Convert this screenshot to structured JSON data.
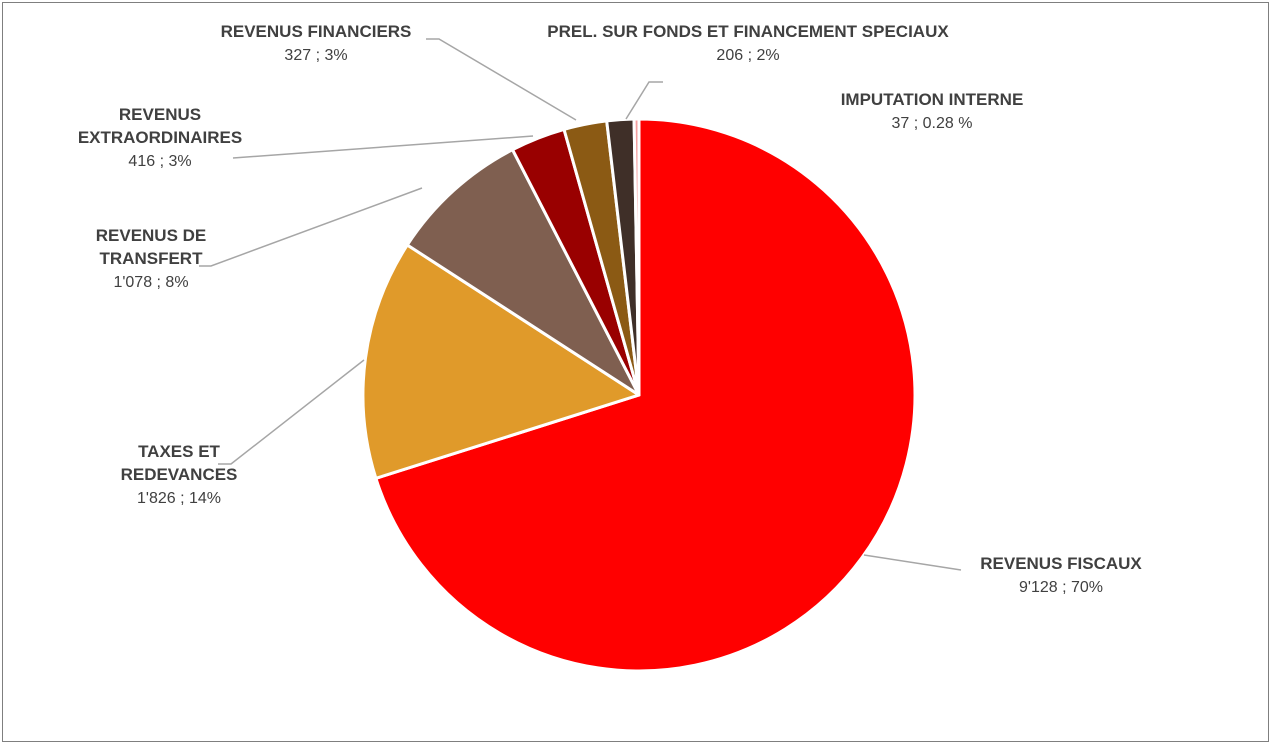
{
  "chart_data": {
    "type": "pie",
    "title": "",
    "start_angle_deg": 0,
    "direction": "clockwise",
    "legend": "none",
    "slices": [
      {
        "name_lines": [
          "REVENUS FISCAUX"
        ],
        "value": 9128,
        "value_label": "9'128 ; 70%",
        "color": "#ff0000"
      },
      {
        "name_lines": [
          "TAXES ET",
          "REDEVANCES"
        ],
        "value": 1826,
        "value_label": "1'826 ; 14%",
        "color": "#e09a2a"
      },
      {
        "name_lines": [
          "REVENUS DE",
          "TRANSFERT"
        ],
        "value": 1078,
        "value_label": "1'078 ; 8%",
        "color": "#7f5f50"
      },
      {
        "name_lines": [
          "REVENUS",
          "EXTRAORDINAIRES"
        ],
        "value": 416,
        "value_label": "416 ; 3%",
        "color": "#990000"
      },
      {
        "name_lines": [
          "REVENUS FINANCIERS"
        ],
        "value": 327,
        "value_label": "327 ; 3%",
        "color": "#8b5a14"
      },
      {
        "name_lines": [
          "PREL. SUR FONDS ET FINANCEMENT SPECIAUX"
        ],
        "value": 206,
        "value_label": "206 ; 2%",
        "color": "#3f2f28"
      },
      {
        "name_lines": [
          "IMPUTATION INTERNE"
        ],
        "value": 37,
        "value_label": "37  ;  0.28 %",
        "color": "#f4a0a0"
      }
    ]
  }
}
